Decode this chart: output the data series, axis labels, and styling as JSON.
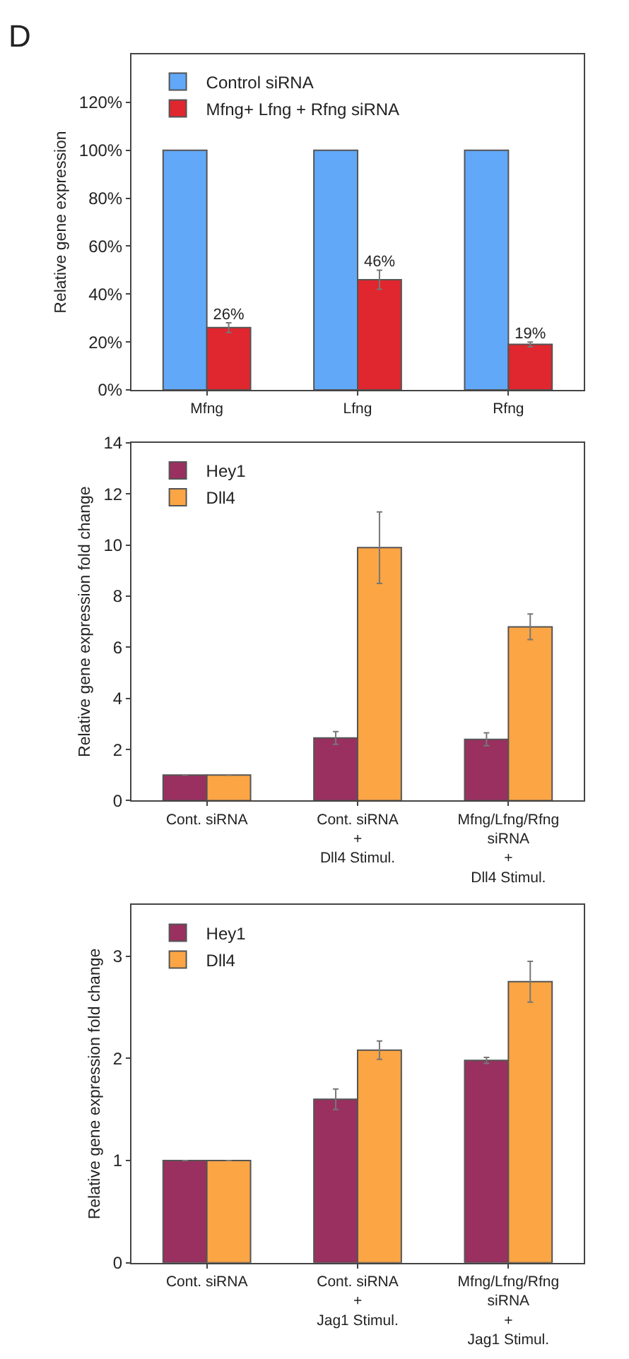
{
  "chart_data": [
    {
      "type": "bar",
      "annotations": [
        "D"
      ],
      "ylabel": "Relative gene expression",
      "categories": [
        "Mfng",
        "Lfng",
        "Rfng"
      ],
      "ylim": [
        0,
        140
      ],
      "yticks": [
        {
          "value": 0,
          "label": "0%"
        },
        {
          "value": 20,
          "label": "20%"
        },
        {
          "value": 40,
          "label": "40%"
        },
        {
          "value": 60,
          "label": "60%"
        },
        {
          "value": 80,
          "label": "80%"
        },
        {
          "value": 100,
          "label": "100%"
        },
        {
          "value": 120,
          "label": "120%"
        }
      ],
      "legend": "top left",
      "series": [
        {
          "name": "Control siRNA",
          "color": "#62a8f8",
          "values": [
            100,
            100,
            100
          ]
        },
        {
          "name": "Mfng+ Lfng + Rfng siRNA",
          "color": "#e0262e",
          "values": [
            26,
            46,
            19
          ],
          "errors": [
            2,
            4,
            1
          ],
          "value_labels": [
            "26%",
            "46%",
            "19%"
          ]
        }
      ]
    },
    {
      "type": "bar",
      "ylabel": "Relative gene expression fold change",
      "categories": [
        "Cont. siRNA",
        "Cont. siRNA\n+\nDll4 Stimul.",
        "Mfng/Lfng/Rfng\nsiRNA\n+\nDll4 Stimul."
      ],
      "ylim": [
        0,
        14
      ],
      "yticks": [
        0,
        2,
        4,
        6,
        8,
        10,
        12,
        14
      ],
      "legend": "top left",
      "series": [
        {
          "name": "Hey1",
          "color": "#993060",
          "values": [
            1,
            2.45,
            2.4
          ],
          "errors": [
            null,
            0.25,
            0.25
          ]
        },
        {
          "name": "Dll4",
          "color": "#fba544",
          "values": [
            1,
            9.9,
            6.8
          ],
          "errors": [
            null,
            1.4,
            0.5
          ]
        }
      ]
    },
    {
      "type": "bar",
      "ylabel": "Relative gene expression fold change",
      "categories": [
        "Cont. siRNA",
        "Cont. siRNA\n+\nJag1 Stimul.",
        "Mfng/Lfng/Rfng\nsiRNA\n+\nJag1 Stimul."
      ],
      "ylim": [
        0,
        3.5
      ],
      "yticks": [
        0,
        1,
        2,
        3
      ],
      "legend": "top left",
      "series": [
        {
          "name": "Hey1",
          "color": "#993060",
          "values": [
            1,
            1.6,
            1.98
          ],
          "errors": [
            null,
            0.1,
            0.03
          ]
        },
        {
          "name": "Dll4",
          "color": "#fba544",
          "values": [
            1,
            2.08,
            2.75
          ],
          "errors": [
            null,
            0.09,
            0.2
          ]
        }
      ]
    }
  ]
}
